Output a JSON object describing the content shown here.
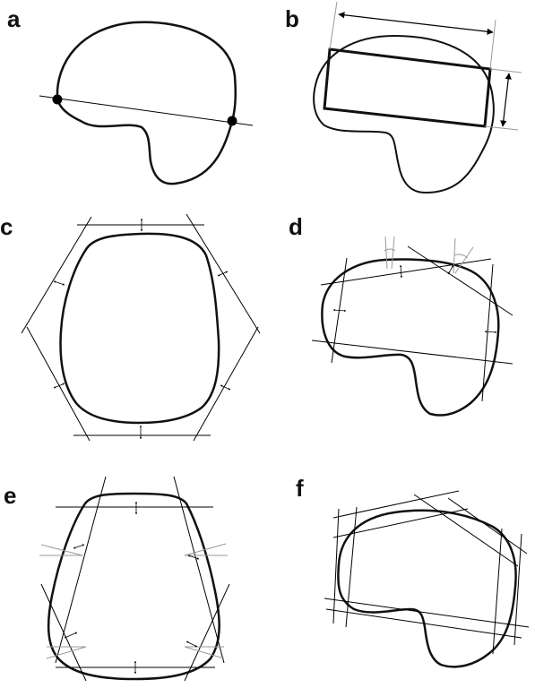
{
  "panels": {
    "a": {
      "label": "a"
    },
    "b": {
      "label": "b"
    },
    "c": {
      "label": "c"
    },
    "d": {
      "label": "d"
    },
    "e": {
      "label": "e"
    },
    "f": {
      "label": "f"
    }
  },
  "colors": {
    "outline": "#111111",
    "construction": "#000000",
    "angle_marks": "#9a9a9a"
  }
}
